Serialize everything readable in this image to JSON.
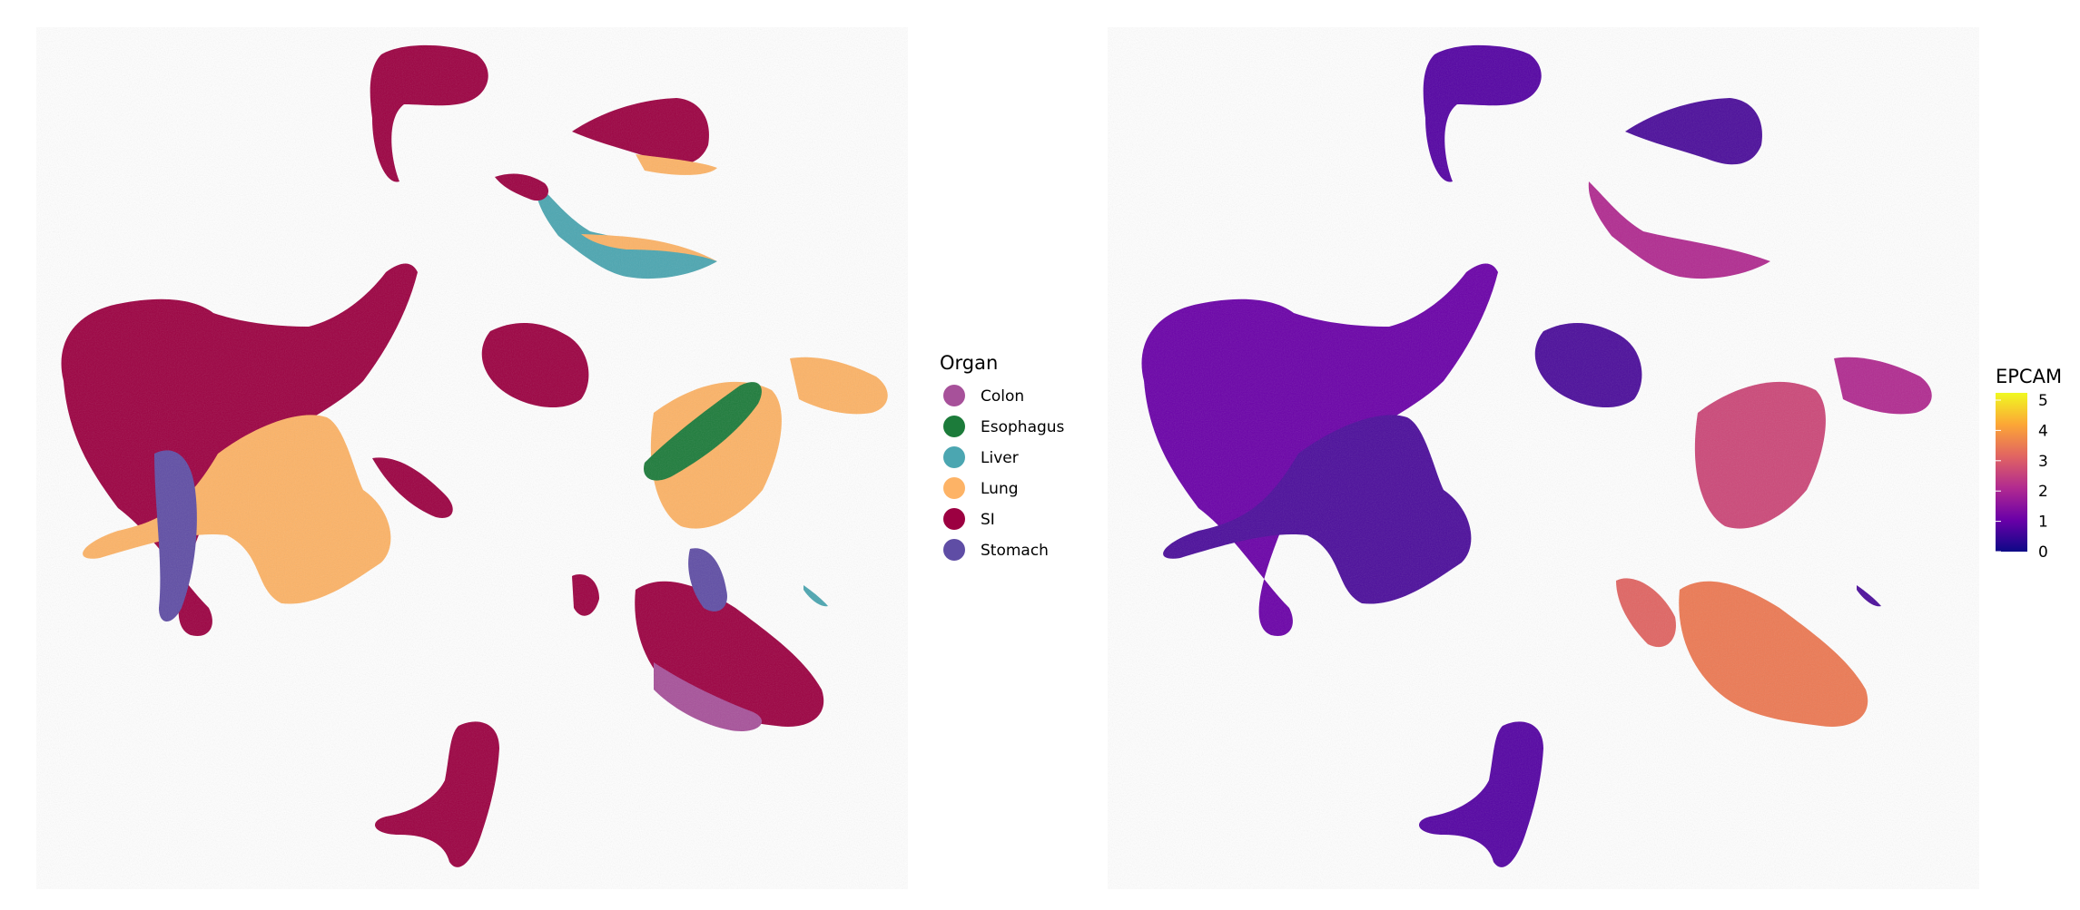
{
  "chart_data": [
    {
      "type": "scatter",
      "panel": "left",
      "colored_by": "Organ",
      "legend": {
        "title": "Organ",
        "placement": "right",
        "entries": [
          {
            "label": "Colon",
            "color": "#A7519A"
          },
          {
            "label": "Esophagus",
            "color": "#1C7B3A"
          },
          {
            "label": "Liver",
            "color": "#4BA6B1"
          },
          {
            "label": "Lung",
            "color": "#FDB366"
          },
          {
            "label": "SI",
            "color": "#9C0041"
          },
          {
            "label": "Stomach",
            "color": "#5F4DA5"
          }
        ]
      },
      "axes_visible": false,
      "grid": false
    },
    {
      "type": "scatter",
      "panel": "right",
      "colored_by": "EPCAM",
      "colorbar": {
        "title": "EPCAM",
        "placement": "right",
        "ticks": [
          "0",
          "1",
          "2",
          "3",
          "4",
          "5"
        ],
        "range": [
          0,
          5
        ],
        "colormap": "plasma",
        "stops": [
          "#0D0887",
          "#6A00A8",
          "#B12A90",
          "#E16462",
          "#FCA636",
          "#F0F921"
        ]
      },
      "axes_visible": false,
      "grid": false
    }
  ]
}
